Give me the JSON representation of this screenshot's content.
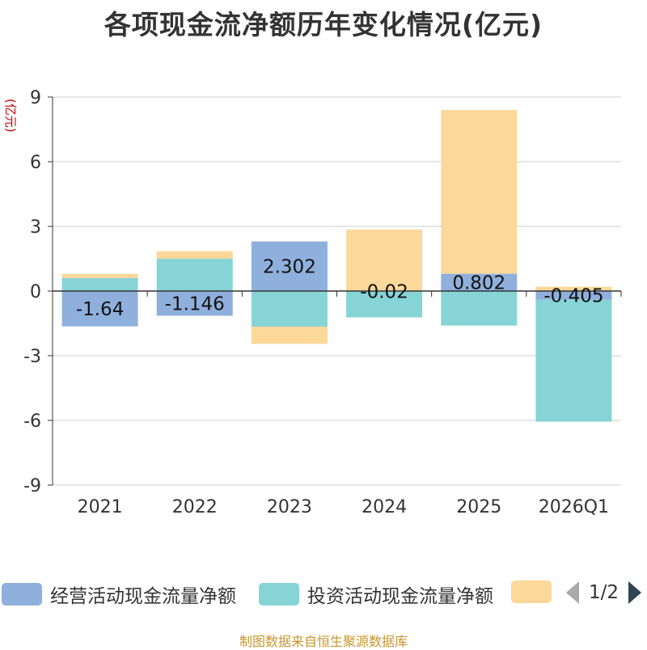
{
  "title": "各项现金流净额历年变化情况(亿元)",
  "unit_label": "(亿元)",
  "colors": {
    "operating": "#8fb0dc",
    "investing": "#87d4d7",
    "financing": "#fdd89b",
    "unit_label": "#cc0000",
    "footer": "#c8962d"
  },
  "legend": {
    "items": [
      "经营活动现金流量净额",
      "投资活动现金流量净额",
      ""
    ],
    "page": "1/2"
  },
  "footer": "制图数据来自恒生聚源数据库",
  "chart_data": {
    "type": "bar",
    "stacked": true,
    "title": "各项现金流净额历年变化情况(亿元)",
    "ylabel": "(亿元)",
    "ylim": [
      -9,
      9
    ],
    "yticks": [
      -9,
      -6,
      -3,
      0,
      3,
      6,
      9
    ],
    "categories": [
      "2021",
      "2022",
      "2023",
      "2024",
      "2025",
      "2026Q1"
    ],
    "series": [
      {
        "name": "经营活动现金流量净额",
        "values": [
          -1.64,
          -1.146,
          2.302,
          -0.02,
          0.802,
          -0.405
        ]
      },
      {
        "name": "投资活动现金流量净额",
        "values": [
          0.6,
          1.5,
          -1.65,
          -1.2,
          -1.6,
          -5.65
        ]
      },
      {
        "name": "",
        "values": [
          0.2,
          0.35,
          -0.8,
          2.85,
          7.6,
          0.2
        ]
      }
    ],
    "data_labels": [
      "-1.64",
      "-1.146",
      "2.302",
      "-0.02",
      "0.802",
      "-0.405"
    ],
    "legend_position": "bottom"
  }
}
